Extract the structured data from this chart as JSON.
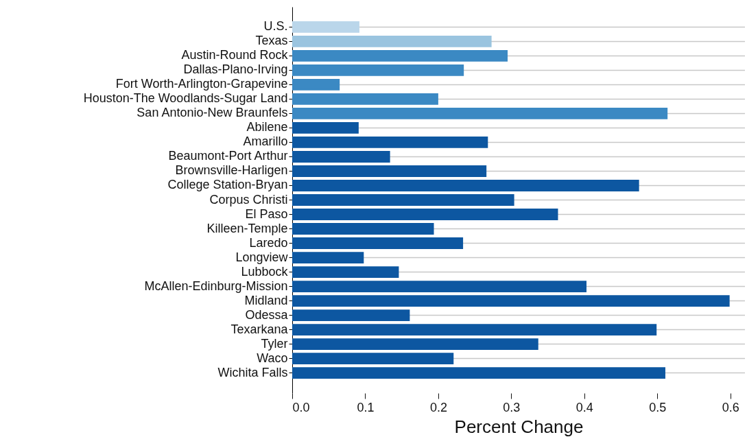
{
  "chart_data": {
    "type": "bar",
    "orientation": "horizontal",
    "xlabel": "Percent Change",
    "categories": [
      "U.S.",
      "Texas",
      "Austin-Round Rock",
      "Dallas-Plano-Irving",
      "Fort Worth-Arlington-Grapevine",
      "Houston-The Woodlands-Sugar Land",
      "San Antonio-New Braunfels",
      "Abilene",
      "Amarillo",
      "Beaumont-Port Arthur",
      "Brownsville-Harligen",
      "College Station-Bryan",
      "Corpus Christi",
      "El Paso",
      "Killeen-Temple",
      "Laredo",
      "Longview",
      "Lubbock",
      "McAllen-Edinburg-Mission",
      "Midland",
      "Odessa",
      "Texarkana",
      "Tyler",
      "Waco",
      "Wichita Falls"
    ],
    "values": [
      0.092,
      0.273,
      0.295,
      0.235,
      0.065,
      0.2,
      0.514,
      0.091,
      0.268,
      0.134,
      0.266,
      0.475,
      0.304,
      0.364,
      0.194,
      0.234,
      0.098,
      0.146,
      0.403,
      0.599,
      0.161,
      0.499,
      0.337,
      0.221,
      0.511
    ],
    "colors": [
      "#bad6ea",
      "#9ac4df",
      "#3b89c3",
      "#3b89c3",
      "#3b89c3",
      "#3b89c3",
      "#3b89c3",
      "#0d57a1",
      "#0d57a1",
      "#0d57a1",
      "#0d57a1",
      "#0d57a1",
      "#0d57a1",
      "#0d57a1",
      "#0d57a1",
      "#0d57a1",
      "#0d57a1",
      "#0d57a1",
      "#0d57a1",
      "#0d57a1",
      "#0d57a1",
      "#0d57a1",
      "#0d57a1",
      "#0d57a1",
      "#0d57a1"
    ],
    "xlim": [
      0,
      0.62
    ],
    "xticks": [
      {
        "value": 0,
        "label": "0.0"
      },
      0.1,
      0.2,
      0.3,
      0.4,
      0.5,
      0.6
    ],
    "grid": "y"
  }
}
